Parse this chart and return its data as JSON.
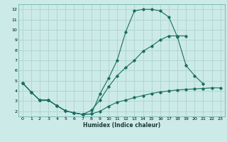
{
  "title": "",
  "xlabel": "Humidex (Indice chaleur)",
  "bg_color": "#cceae7",
  "grid_color": "#aed4d0",
  "line_color": "#1a6e62",
  "xlim": [
    -0.5,
    23.5
  ],
  "ylim": [
    1.5,
    12.5
  ],
  "xticks": [
    0,
    1,
    2,
    3,
    4,
    5,
    6,
    7,
    8,
    9,
    10,
    11,
    12,
    13,
    14,
    15,
    16,
    17,
    18,
    19,
    20,
    21,
    22,
    23
  ],
  "yticks": [
    2,
    3,
    4,
    5,
    6,
    7,
    8,
    9,
    10,
    11,
    12
  ],
  "curve1_x": [
    0,
    1,
    2,
    3,
    4,
    5,
    6,
    7,
    8,
    9,
    10,
    11,
    12,
    13,
    14,
    15,
    16,
    17,
    18,
    19,
    20,
    21
  ],
  "curve1_y": [
    4.8,
    3.9,
    3.1,
    3.1,
    2.55,
    2.05,
    1.85,
    1.7,
    1.75,
    3.7,
    5.25,
    7.0,
    9.8,
    11.85,
    12.0,
    12.0,
    11.85,
    11.25,
    9.3,
    6.5,
    5.5,
    4.7
  ],
  "curve2_x": [
    0,
    1,
    2,
    3,
    4,
    5,
    6,
    7,
    8,
    9,
    10,
    11,
    12,
    13,
    14,
    15,
    16,
    17,
    18,
    19
  ],
  "curve2_y": [
    4.8,
    3.9,
    3.1,
    3.1,
    2.55,
    2.05,
    1.85,
    1.7,
    2.1,
    3.1,
    4.4,
    5.5,
    6.3,
    7.0,
    7.9,
    8.4,
    9.0,
    9.4,
    9.4,
    9.4
  ],
  "curve3_x": [
    0,
    1,
    2,
    3,
    4,
    5,
    6,
    7,
    8,
    9,
    10,
    11,
    12,
    13,
    14,
    15,
    16,
    17,
    18,
    19,
    20,
    21,
    22,
    23
  ],
  "curve3_y": [
    4.8,
    3.9,
    3.1,
    3.1,
    2.55,
    2.05,
    1.85,
    1.7,
    1.75,
    2.0,
    2.5,
    2.9,
    3.1,
    3.35,
    3.55,
    3.75,
    3.9,
    4.0,
    4.1,
    4.15,
    4.2,
    4.25,
    4.3,
    4.3
  ]
}
